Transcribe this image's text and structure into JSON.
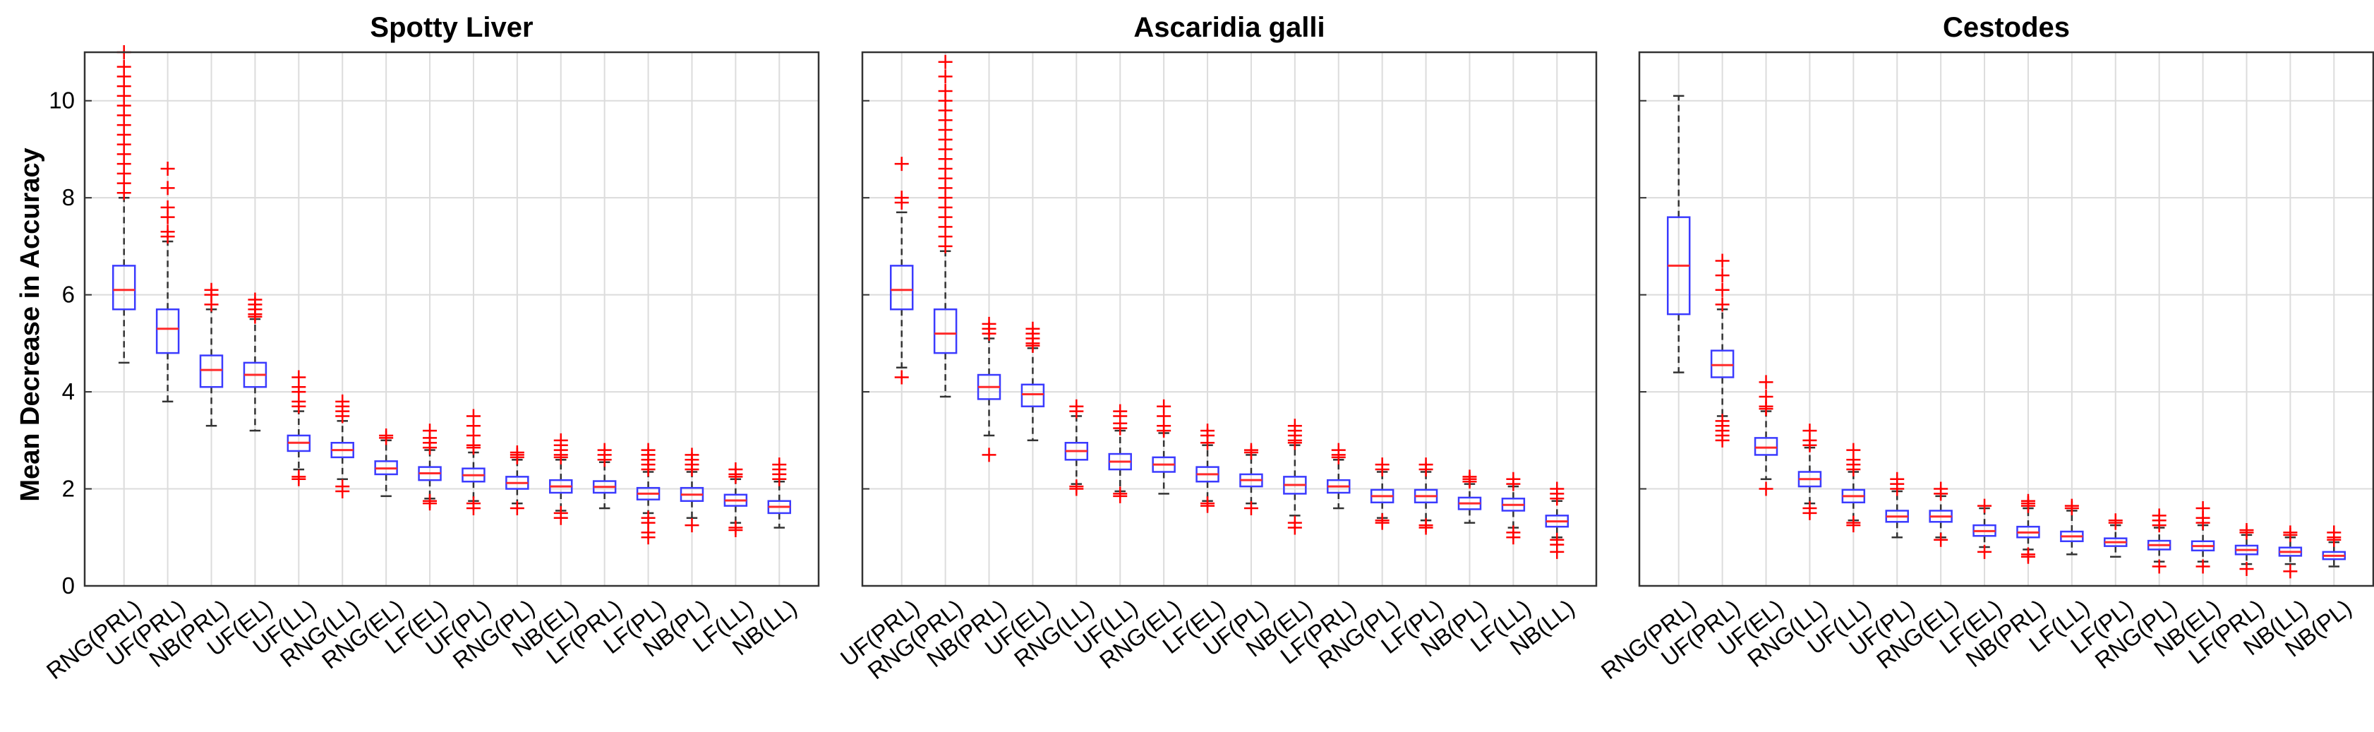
{
  "chart_data": [
    {
      "type": "boxplot",
      "title": "Spotty Liver",
      "ylabel": "Mean Decrease in Accuracy",
      "ylim": [
        0,
        11
      ],
      "yticks": [
        0,
        2,
        4,
        6,
        8,
        10
      ],
      "grid": true,
      "box_color": "#3b3bff",
      "median_color": "#ff2a2a",
      "outlier_color": "#ff0000",
      "whisker_color": "#333333",
      "categories": [
        "RNG(PRL)",
        "UF(PRL)",
        "NB(PRL)",
        "UF(EL)",
        "UF(LL)",
        "RNG(LL)",
        "RNG(EL)",
        "LF(EL)",
        "UF(PL)",
        "RNG(PL)",
        "NB(EL)",
        "LF(PRL)",
        "LF(PL)",
        "NB(PL)",
        "LF(LL)",
        "NB(LL)"
      ],
      "boxes": [
        {
          "low": 4.6,
          "q1": 5.7,
          "median": 6.1,
          "q3": 6.6,
          "high": 8.0,
          "outliers": [
            8.1,
            8.3,
            8.5,
            8.7,
            8.9,
            9.1,
            9.3,
            9.5,
            9.7,
            9.9,
            10.1,
            10.3,
            10.5,
            10.7,
            11.0
          ]
        },
        {
          "low": 3.8,
          "q1": 4.8,
          "median": 5.3,
          "q3": 5.7,
          "high": 7.1,
          "outliers": [
            7.2,
            7.3,
            7.6,
            7.8,
            8.2,
            8.6
          ]
        },
        {
          "low": 3.3,
          "q1": 4.1,
          "median": 4.45,
          "q3": 4.75,
          "high": 5.7,
          "outliers": [
            5.8,
            6.0,
            6.1
          ]
        },
        {
          "low": 3.2,
          "q1": 4.1,
          "median": 4.35,
          "q3": 4.6,
          "high": 5.5,
          "outliers": [
            5.55,
            5.6,
            5.7,
            5.8,
            5.9
          ]
        },
        {
          "low": 2.4,
          "q1": 2.78,
          "median": 2.95,
          "q3": 3.1,
          "high": 3.6,
          "outliers": [
            2.2,
            2.25,
            3.7,
            3.8,
            4.0,
            4.1,
            4.3
          ]
        },
        {
          "low": 2.2,
          "q1": 2.65,
          "median": 2.8,
          "q3": 2.95,
          "high": 3.4,
          "outliers": [
            1.95,
            2.05,
            3.5,
            3.6,
            3.7,
            3.8
          ]
        },
        {
          "low": 1.85,
          "q1": 2.3,
          "median": 2.42,
          "q3": 2.57,
          "high": 3.0,
          "outliers": [
            3.05,
            3.1
          ]
        },
        {
          "low": 1.8,
          "q1": 2.18,
          "median": 2.32,
          "q3": 2.45,
          "high": 2.8,
          "outliers": [
            1.7,
            1.75,
            2.85,
            2.95,
            3.05,
            3.2
          ]
        },
        {
          "low": 1.75,
          "q1": 2.15,
          "median": 2.28,
          "q3": 2.42,
          "high": 2.75,
          "outliers": [
            1.6,
            1.7,
            2.85,
            2.9,
            3.1,
            3.3,
            3.5
          ]
        },
        {
          "low": 1.7,
          "q1": 2.0,
          "median": 2.12,
          "q3": 2.25,
          "high": 2.6,
          "outliers": [
            1.6,
            2.65,
            2.7,
            2.75
          ]
        },
        {
          "low": 1.55,
          "q1": 1.92,
          "median": 2.05,
          "q3": 2.18,
          "high": 2.6,
          "outliers": [
            1.4,
            1.5,
            2.65,
            2.7,
            2.8,
            2.9,
            3.0
          ]
        },
        {
          "low": 1.6,
          "q1": 1.92,
          "median": 2.04,
          "q3": 2.16,
          "high": 2.55,
          "outliers": [
            2.6,
            2.7,
            2.8
          ]
        },
        {
          "low": 1.5,
          "q1": 1.78,
          "median": 1.9,
          "q3": 2.02,
          "high": 2.35,
          "outliers": [
            1.0,
            1.1,
            1.3,
            1.4,
            2.4,
            2.5,
            2.6,
            2.7,
            2.8
          ]
        },
        {
          "low": 1.4,
          "q1": 1.75,
          "median": 1.88,
          "q3": 2.02,
          "high": 2.35,
          "outliers": [
            1.25,
            2.4,
            2.5,
            2.6,
            2.7
          ]
        },
        {
          "low": 1.3,
          "q1": 1.65,
          "median": 1.76,
          "q3": 1.88,
          "high": 2.2,
          "outliers": [
            1.15,
            1.2,
            2.25,
            2.3,
            2.4
          ]
        },
        {
          "low": 1.2,
          "q1": 1.5,
          "median": 1.63,
          "q3": 1.75,
          "high": 2.15,
          "outliers": [
            2.2,
            2.3,
            2.4,
            2.5
          ]
        }
      ]
    },
    {
      "type": "boxplot",
      "title": "Ascaridia galli",
      "ylim": [
        0,
        11
      ],
      "yticks": [
        0,
        2,
        4,
        6,
        8,
        10
      ],
      "grid": true,
      "categories": [
        "UF(PRL)",
        "RNG(PRL)",
        "NB(PRL)",
        "UF(EL)",
        "RNG(LL)",
        "UF(LL)",
        "RNG(EL)",
        "LF(EL)",
        "UF(PL)",
        "NB(EL)",
        "LF(PRL)",
        "RNG(PL)",
        "LF(PL)",
        "NB(PL)",
        "LF(LL)",
        "NB(LL)"
      ],
      "boxes": [
        {
          "low": 4.5,
          "q1": 5.7,
          "median": 6.1,
          "q3": 6.6,
          "high": 7.7,
          "outliers": [
            4.3,
            7.9,
            8.0,
            8.7
          ]
        },
        {
          "low": 3.9,
          "q1": 4.8,
          "median": 5.2,
          "q3": 5.7,
          "high": 6.9,
          "outliers": [
            7.0,
            7.2,
            7.4,
            7.6,
            7.8,
            8.0,
            8.2,
            8.4,
            8.6,
            8.8,
            9.0,
            9.2,
            9.4,
            9.6,
            9.8,
            10.0,
            10.2,
            10.5,
            10.8
          ]
        },
        {
          "low": 3.1,
          "q1": 3.85,
          "median": 4.1,
          "q3": 4.35,
          "high": 5.1,
          "outliers": [
            2.7,
            5.2,
            5.3,
            5.4
          ]
        },
        {
          "low": 3.0,
          "q1": 3.7,
          "median": 3.95,
          "q3": 4.15,
          "high": 4.9,
          "outliers": [
            4.95,
            5.0,
            5.1,
            5.2,
            5.3
          ]
        },
        {
          "low": 2.1,
          "q1": 2.6,
          "median": 2.78,
          "q3": 2.95,
          "high": 3.5,
          "outliers": [
            2.0,
            2.05,
            3.6,
            3.7
          ]
        },
        {
          "low": 1.95,
          "q1": 2.4,
          "median": 2.56,
          "q3": 2.72,
          "high": 3.2,
          "outliers": [
            1.85,
            1.9,
            3.25,
            3.35,
            3.5,
            3.6
          ]
        },
        {
          "low": 1.9,
          "q1": 2.35,
          "median": 2.5,
          "q3": 2.65,
          "high": 3.15,
          "outliers": [
            3.2,
            3.3,
            3.5,
            3.7
          ]
        },
        {
          "low": 1.75,
          "q1": 2.15,
          "median": 2.3,
          "q3": 2.45,
          "high": 2.9,
          "outliers": [
            1.65,
            1.7,
            2.95,
            3.1,
            3.2
          ]
        },
        {
          "low": 1.7,
          "q1": 2.05,
          "median": 2.18,
          "q3": 2.3,
          "high": 2.7,
          "outliers": [
            1.6,
            2.75,
            2.8
          ]
        },
        {
          "low": 1.45,
          "q1": 1.9,
          "median": 2.08,
          "q3": 2.25,
          "high": 2.9,
          "outliers": [
            1.2,
            1.3,
            2.95,
            3.0,
            3.1,
            3.2,
            3.3
          ]
        },
        {
          "low": 1.6,
          "q1": 1.92,
          "median": 2.05,
          "q3": 2.18,
          "high": 2.6,
          "outliers": [
            2.65,
            2.7,
            2.8
          ]
        },
        {
          "low": 1.4,
          "q1": 1.72,
          "median": 1.85,
          "q3": 1.98,
          "high": 2.35,
          "outliers": [
            1.3,
            1.35,
            2.4,
            2.5
          ]
        },
        {
          "low": 1.35,
          "q1": 1.72,
          "median": 1.85,
          "q3": 1.98,
          "high": 2.35,
          "outliers": [
            1.2,
            1.25,
            2.4,
            2.5
          ]
        },
        {
          "low": 1.3,
          "q1": 1.58,
          "median": 1.7,
          "q3": 1.82,
          "high": 2.1,
          "outliers": [
            2.15,
            2.2,
            2.25
          ]
        },
        {
          "low": 1.2,
          "q1": 1.55,
          "median": 1.67,
          "q3": 1.8,
          "high": 2.05,
          "outliers": [
            1.0,
            1.1,
            2.1,
            2.2
          ]
        },
        {
          "low": 1.0,
          "q1": 1.22,
          "median": 1.33,
          "q3": 1.45,
          "high": 1.75,
          "outliers": [
            0.7,
            0.85,
            0.95,
            1.8,
            1.9,
            2.0
          ]
        }
      ]
    },
    {
      "type": "boxplot",
      "title": "Cestodes",
      "ylim": [
        0,
        11
      ],
      "yticks": [
        0,
        2,
        4,
        6,
        8,
        10
      ],
      "grid": true,
      "categories": [
        "RNG(PRL)",
        "UF(PRL)",
        "UF(EL)",
        "RNG(LL)",
        "UF(LL)",
        "UF(PL)",
        "RNG(EL)",
        "LF(EL)",
        "NB(PRL)",
        "LF(LL)",
        "LF(PL)",
        "RNG(PL)",
        "NB(EL)",
        "LF(PRL)",
        "NB(LL)",
        "NB(PL)"
      ],
      "boxes": [
        {
          "low": 4.4,
          "q1": 5.6,
          "median": 6.6,
          "q3": 7.6,
          "high": 10.1,
          "outliers": []
        },
        {
          "low": 3.5,
          "q1": 4.3,
          "median": 4.55,
          "q3": 4.85,
          "high": 5.7,
          "outliers": [
            3.0,
            3.1,
            3.2,
            3.3,
            3.4,
            5.8,
            6.1,
            6.4,
            6.7
          ]
        },
        {
          "low": 2.2,
          "q1": 2.7,
          "median": 2.85,
          "q3": 3.05,
          "high": 3.6,
          "outliers": [
            2.0,
            3.65,
            3.7,
            3.9,
            4.2
          ]
        },
        {
          "low": 1.7,
          "q1": 2.05,
          "median": 2.2,
          "q3": 2.35,
          "high": 2.85,
          "outliers": [
            1.5,
            1.6,
            2.9,
            3.0,
            3.2
          ]
        },
        {
          "low": 1.35,
          "q1": 1.72,
          "median": 1.85,
          "q3": 1.98,
          "high": 2.35,
          "outliers": [
            1.25,
            1.3,
            2.4,
            2.5,
            2.6,
            2.8
          ]
        },
        {
          "low": 1.0,
          "q1": 1.32,
          "median": 1.43,
          "q3": 1.55,
          "high": 1.95,
          "outliers": [
            2.0,
            2.1,
            2.2
          ]
        },
        {
          "low": 1.0,
          "q1": 1.32,
          "median": 1.43,
          "q3": 1.55,
          "high": 1.85,
          "outliers": [
            0.95,
            1.9,
            2.0
          ]
        },
        {
          "low": 0.8,
          "q1": 1.03,
          "median": 1.13,
          "q3": 1.25,
          "high": 1.6,
          "outliers": [
            0.7,
            1.65
          ]
        },
        {
          "low": 0.75,
          "q1": 1.0,
          "median": 1.1,
          "q3": 1.22,
          "high": 1.6,
          "outliers": [
            0.6,
            0.65,
            1.65,
            1.7,
            1.75
          ]
        },
        {
          "low": 0.65,
          "q1": 0.92,
          "median": 1.02,
          "q3": 1.12,
          "high": 1.55,
          "outliers": [
            1.6,
            1.65
          ]
        },
        {
          "low": 0.6,
          "q1": 0.82,
          "median": 0.9,
          "q3": 0.98,
          "high": 1.25,
          "outliers": [
            1.3,
            1.35
          ]
        },
        {
          "low": 0.5,
          "q1": 0.75,
          "median": 0.84,
          "q3": 0.93,
          "high": 1.2,
          "outliers": [
            0.4,
            1.25,
            1.35,
            1.45
          ]
        },
        {
          "low": 0.5,
          "q1": 0.73,
          "median": 0.82,
          "q3": 0.92,
          "high": 1.25,
          "outliers": [
            0.4,
            1.3,
            1.4,
            1.6
          ]
        },
        {
          "low": 0.45,
          "q1": 0.65,
          "median": 0.74,
          "q3": 0.83,
          "high": 1.05,
          "outliers": [
            0.35,
            1.1,
            1.15
          ]
        },
        {
          "low": 0.45,
          "q1": 0.62,
          "median": 0.7,
          "q3": 0.79,
          "high": 1.0,
          "outliers": [
            0.3,
            1.05,
            1.1
          ]
        },
        {
          "low": 0.4,
          "q1": 0.55,
          "median": 0.62,
          "q3": 0.7,
          "high": 0.9,
          "outliers": [
            0.95,
            1.0,
            1.1
          ]
        }
      ]
    }
  ]
}
